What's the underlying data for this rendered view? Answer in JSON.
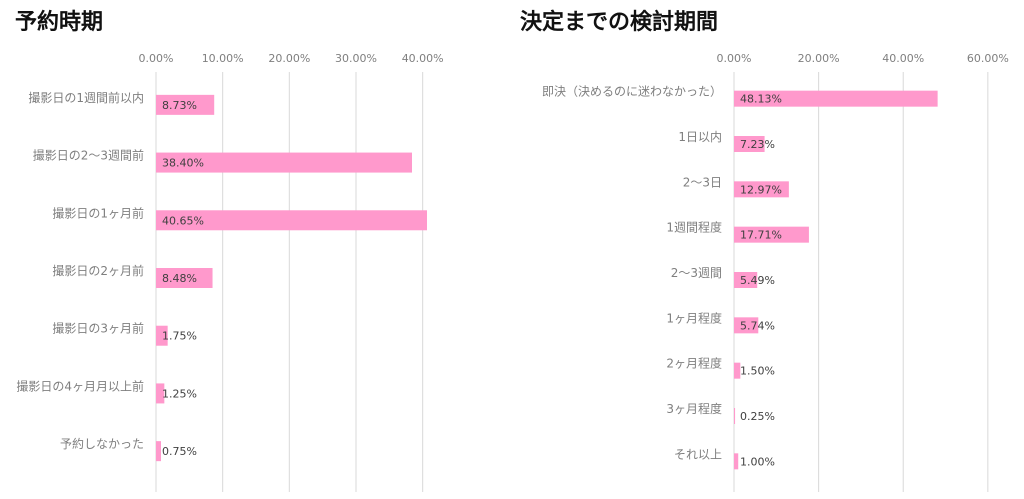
{
  "colors": {
    "bar": "#ff99cc",
    "grid": "#d9d9d9",
    "text": "#7f7f7f"
  },
  "chart_data": [
    {
      "type": "bar",
      "orientation": "horizontal",
      "title": "予約時期",
      "categories": [
        "撮影日の1週間前以内",
        "撮影日の2〜3週間前",
        "撮影日の1ヶ月前",
        "撮影日の2ヶ月前",
        "撮影日の3ヶ月前",
        "撮影日の4ヶ月月以上前",
        "予約しなかった"
      ],
      "values": [
        8.73,
        38.4,
        40.65,
        8.48,
        1.75,
        1.25,
        0.75
      ],
      "value_labels": [
        "8.73%",
        "38.40%",
        "40.65%",
        "8.48%",
        "1.75%",
        "1.25%",
        "0.75%"
      ],
      "xticks": [
        "0.00%",
        "10.00%",
        "20.00%",
        "30.00%",
        "40.00%"
      ],
      "xlim": [
        0,
        45
      ],
      "grid": true,
      "legend": false
    },
    {
      "type": "bar",
      "orientation": "horizontal",
      "title": "決定までの検討期間",
      "categories": [
        "即決（決めるのに迷わなかった）",
        "1日以内",
        "2〜3日",
        "1週間程度",
        "2〜3週間",
        "1ヶ月程度",
        "2ヶ月程度",
        "3ヶ月程度",
        "それ以上"
      ],
      "values": [
        48.13,
        7.23,
        12.97,
        17.71,
        5.49,
        5.74,
        1.5,
        0.25,
        1.0
      ],
      "value_labels": [
        "48.13%",
        "7.23%",
        "12.97%",
        "17.71%",
        "5.49%",
        "5.74%",
        "1.50%",
        "0.25%",
        "1.00%"
      ],
      "xticks": [
        "0.00%",
        "20.00%",
        "40.00%",
        "60.00%"
      ],
      "xlim": [
        0,
        65
      ],
      "grid": true,
      "legend": false
    }
  ]
}
